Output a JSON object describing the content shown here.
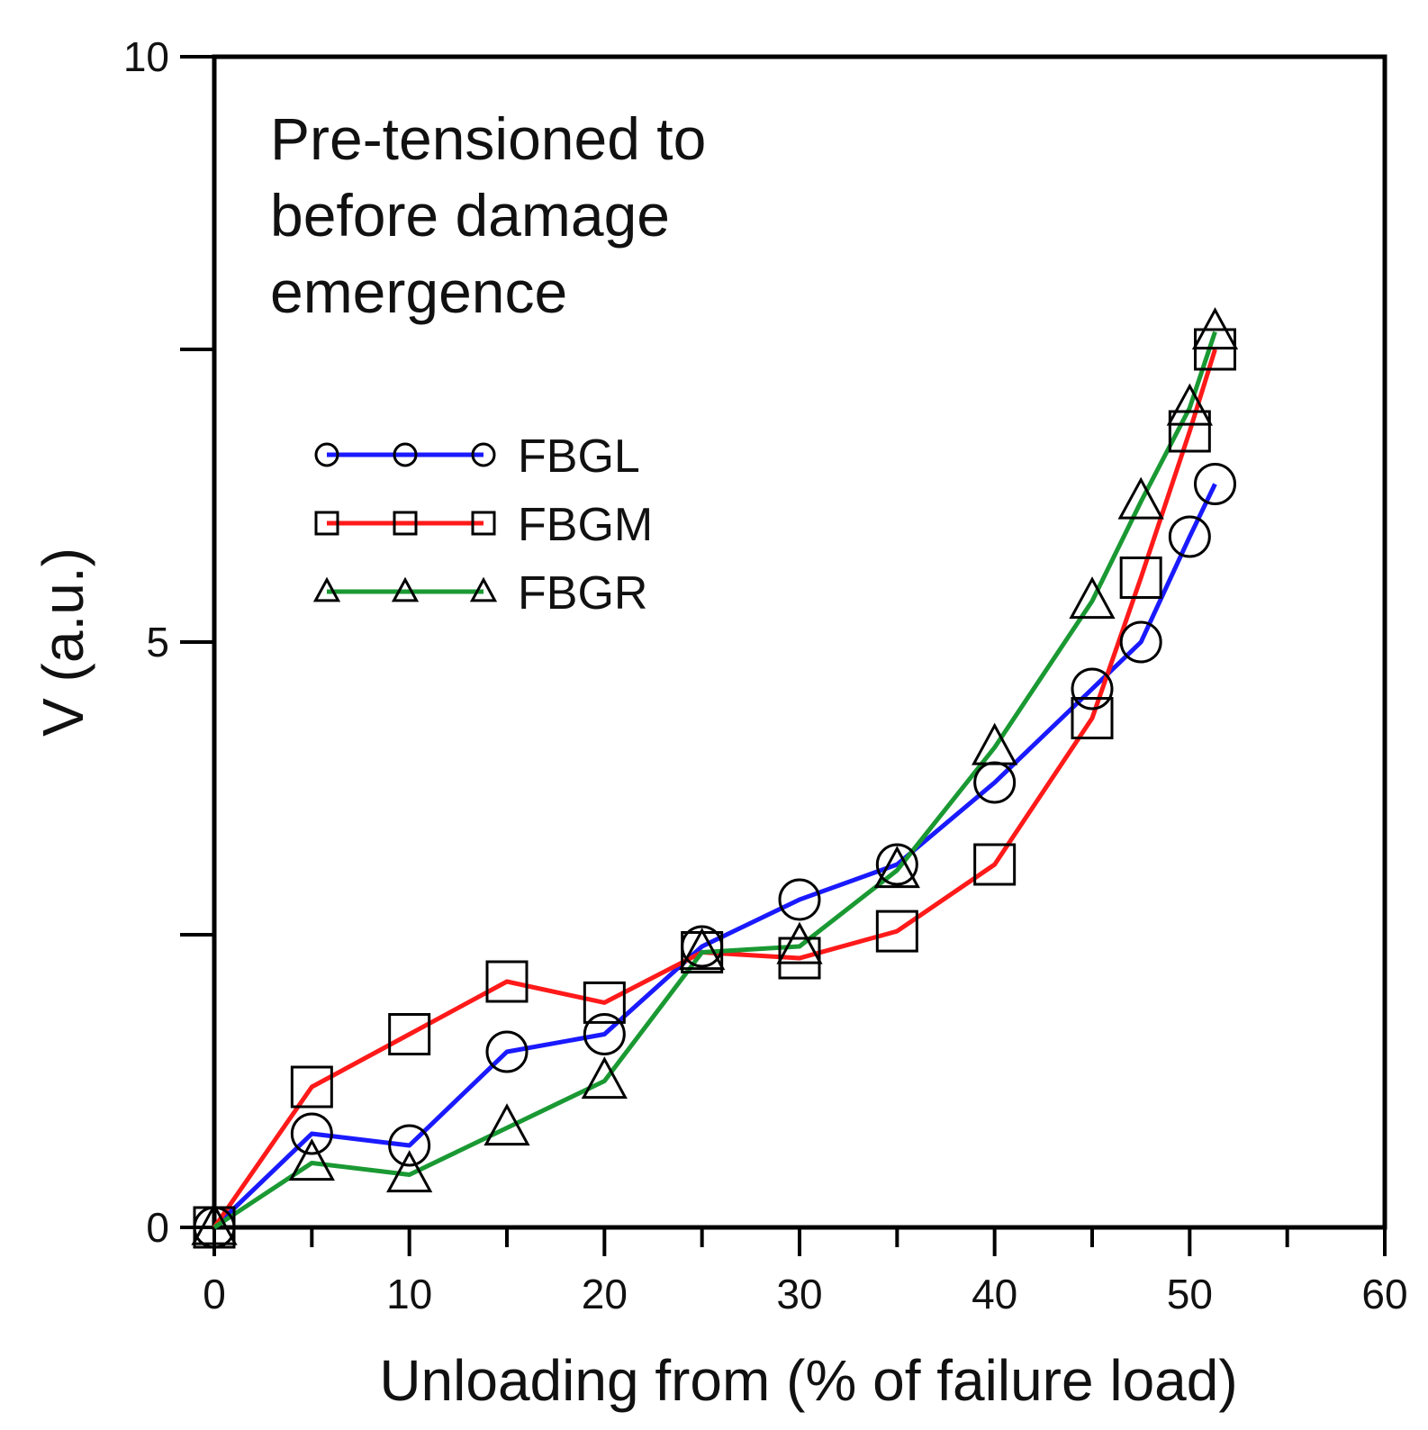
{
  "chart_data": {
    "type": "line",
    "title": "",
    "annotation": [
      "Pre-tensioned to",
      "before damage",
      "emergence"
    ],
    "xlabel": "Unloading from (% of failure load)",
    "ylabel": "V (a.u.)",
    "xlim": [
      0,
      60
    ],
    "ylim": [
      0,
      10
    ],
    "xticks": [
      0,
      10,
      20,
      30,
      40,
      50,
      60
    ],
    "xtick_labels": [
      "0",
      "10",
      "20",
      "30",
      "40",
      "50",
      "60"
    ],
    "yticks": [
      0,
      5,
      10
    ],
    "ytick_labels": [
      "0",
      "5",
      "10"
    ],
    "legend_position": "upper-left",
    "series": [
      {
        "name": "FBGL",
        "color": "#1a1aff",
        "marker": "circle",
        "x": [
          0,
          5,
          10,
          15,
          20,
          25,
          30,
          35,
          40,
          45,
          47.5,
          50,
          51.3
        ],
        "y": [
          0,
          0.8,
          0.7,
          1.5,
          1.65,
          2.4,
          2.8,
          3.1,
          3.8,
          4.6,
          5.0,
          5.9,
          6.35
        ]
      },
      {
        "name": "FBGM",
        "color": "#ff1a1a",
        "marker": "square",
        "x": [
          0,
          5,
          10,
          15,
          20,
          25,
          30,
          35,
          40,
          45,
          47.5,
          50,
          51.3
        ],
        "y": [
          0,
          1.2,
          1.65,
          2.1,
          1.92,
          2.35,
          2.3,
          2.53,
          3.1,
          4.35,
          5.55,
          6.8,
          7.5
        ]
      },
      {
        "name": "FBGR",
        "color": "#1a9933",
        "marker": "triangle",
        "x": [
          0,
          5,
          10,
          15,
          20,
          25,
          30,
          35,
          40,
          45,
          47.5,
          50,
          51.3
        ],
        "y": [
          0,
          0.55,
          0.45,
          0.85,
          1.25,
          2.35,
          2.4,
          3.05,
          4.1,
          5.35,
          6.2,
          7.0,
          7.65
        ]
      }
    ]
  }
}
